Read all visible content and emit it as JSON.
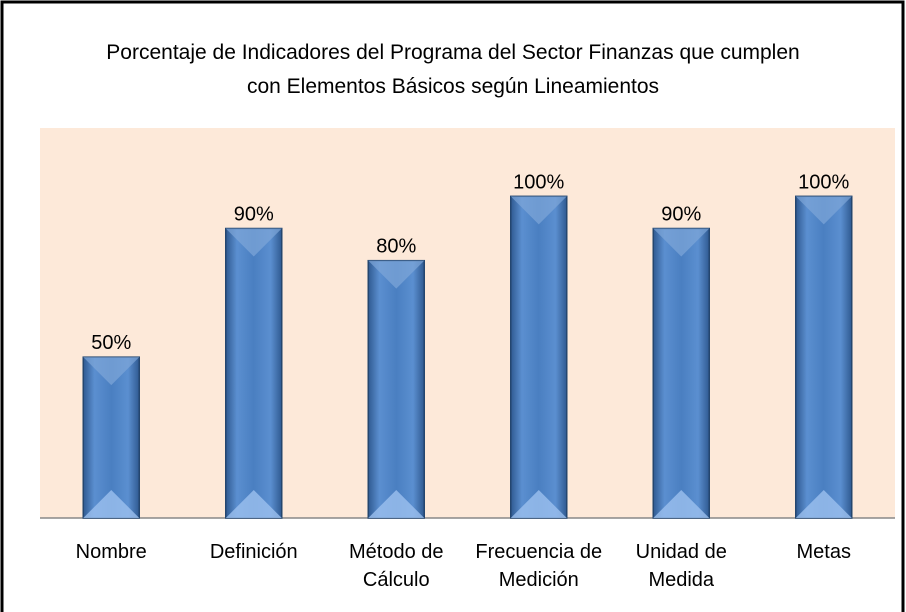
{
  "chart_data": {
    "type": "bar",
    "title": "Porcentaje de Indicadores del Programa del Sector Finanzas que cumplen con Elementos Básicos según Lineamientos",
    "categories": [
      "Nombre",
      "Definición",
      "Método de Cálculo",
      "Frecuencia de Medición",
      "Unidad de Medida",
      "Metas"
    ],
    "values": [
      50,
      90,
      80,
      100,
      90,
      100
    ],
    "value_labels": [
      "50%",
      "90%",
      "80%",
      "100%",
      "90%",
      "100%"
    ],
    "color": "#4f81bd",
    "background": "#fde9d9",
    "ylim": [
      0,
      120
    ]
  }
}
